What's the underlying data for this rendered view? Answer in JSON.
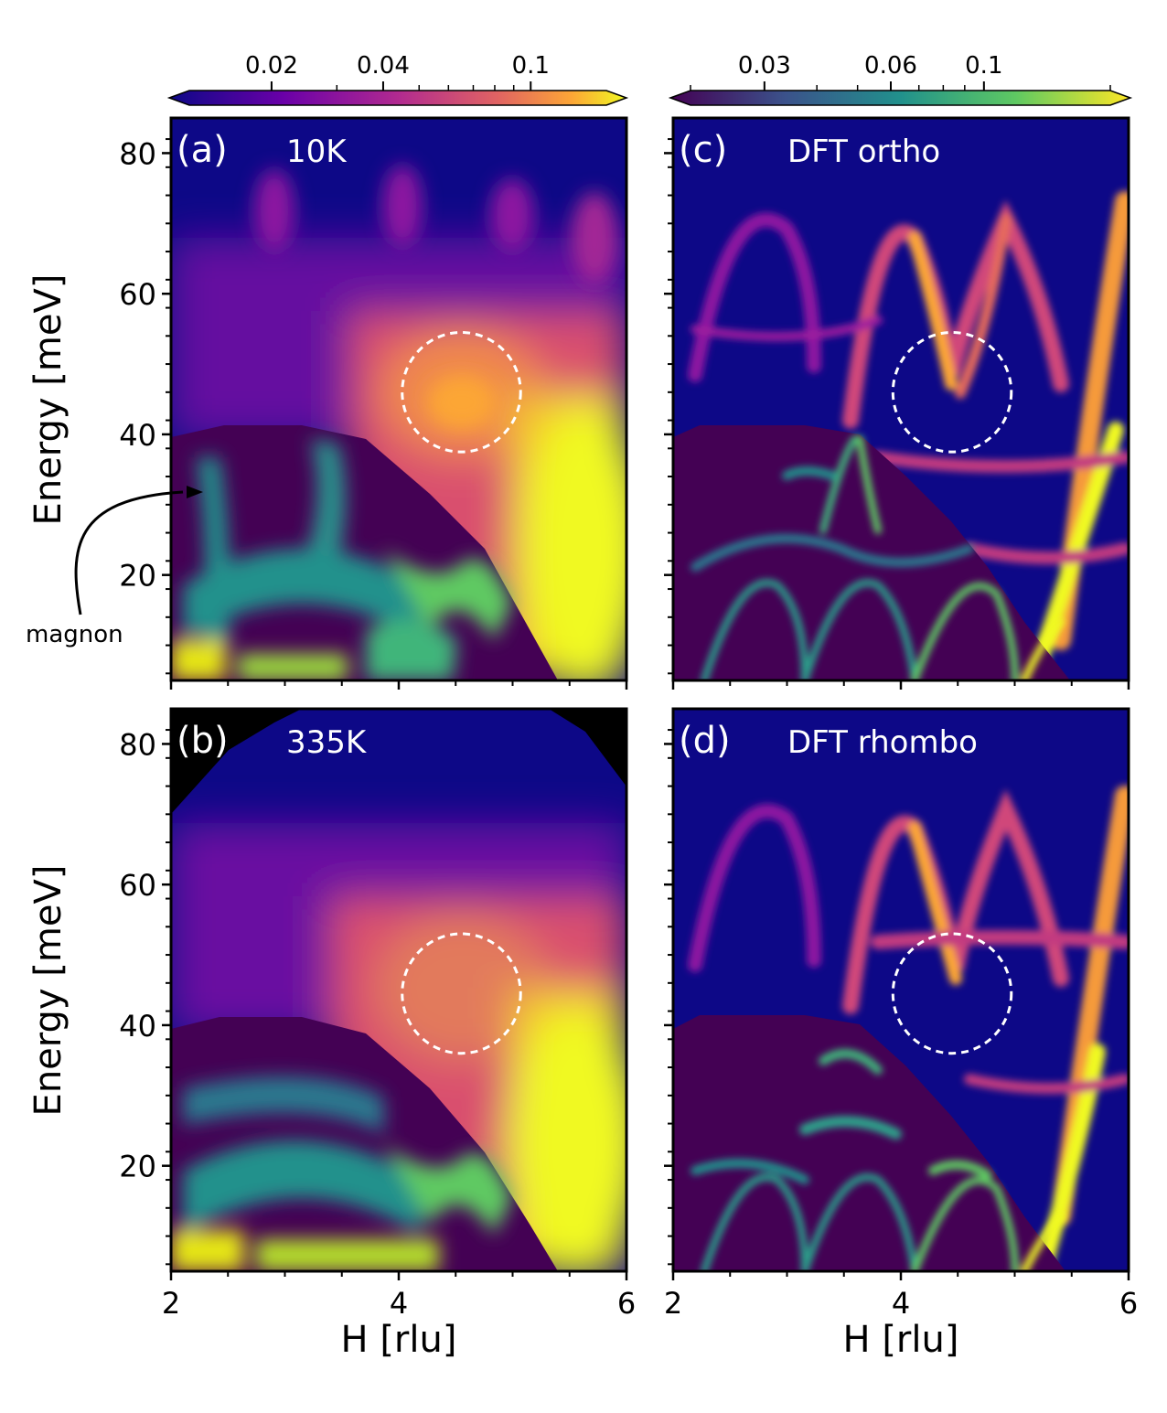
{
  "chart_data": {
    "type": "heatmap",
    "colorbars": [
      {
        "colormap": "plasma",
        "ticks": [
          "0.02",
          "0.04",
          "0.1"
        ],
        "tick_values": [
          0.02,
          0.04,
          0.1
        ],
        "scale": "log",
        "range": [
          0.012,
          0.16
        ]
      },
      {
        "colormap": "viridis",
        "ticks": [
          "0.03",
          "0.06",
          "0.1"
        ],
        "tick_values": [
          0.03,
          0.06,
          0.1
        ],
        "scale": "log",
        "range": [
          0.02,
          0.2
        ]
      }
    ],
    "xlabel": "H [rlu]",
    "ylabel": "Energy [meV]",
    "xlim": [
      2,
      6
    ],
    "ylim": [
      5,
      85
    ],
    "x_ticks": [
      "2",
      "4",
      "6"
    ],
    "y_ticks": [
      "20",
      "40",
      "60",
      "80"
    ],
    "annotation": "magnon",
    "panels": [
      {
        "id": "a",
        "letter": "(a)",
        "label": "10K",
        "kind": "measured",
        "circle": {
          "h": 4.55,
          "e": 46,
          "rh": 0.52,
          "re": 8.5
        }
      },
      {
        "id": "b",
        "letter": "(b)",
        "label": "335K",
        "kind": "measured",
        "circle": {
          "h": 4.55,
          "e": 44.5,
          "rh": 0.52,
          "re": 8.5
        }
      },
      {
        "id": "c",
        "letter": "(c)",
        "label": "DFT ortho",
        "kind": "dft",
        "circle": {
          "h": 4.45,
          "e": 46,
          "rh": 0.52,
          "re": 8.5
        }
      },
      {
        "id": "d",
        "letter": "(d)",
        "label": "DFT rhombo",
        "kind": "dft",
        "circle": {
          "h": 4.45,
          "e": 44.5,
          "rh": 0.52,
          "re": 8.5
        }
      }
    ]
  }
}
